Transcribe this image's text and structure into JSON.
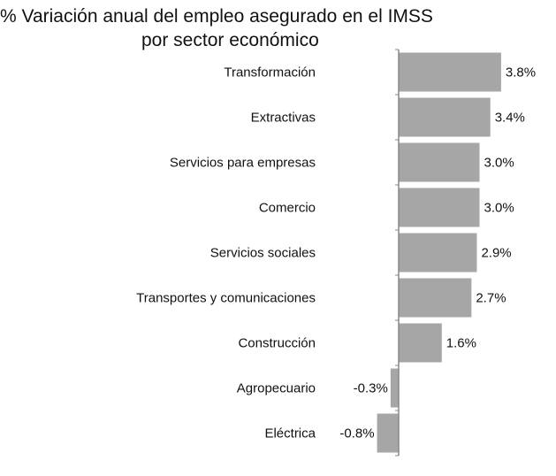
{
  "chart_data": {
    "type": "bar",
    "orientation": "horizontal",
    "title": "% Variación anual del empleo asegurado en el IMSS",
    "subtitle": "por sector económico",
    "categories": [
      "Transformación",
      "Extractivas",
      "Servicios para empresas",
      "Comercio",
      "Servicios sociales",
      "Transportes y comunicaciones",
      "Construcción",
      "Agropecuario",
      "Eléctrica"
    ],
    "values": [
      3.8,
      3.4,
      3.0,
      3.0,
      2.9,
      2.7,
      1.6,
      -0.3,
      -0.8
    ],
    "data_labels": [
      "3.8%",
      "3.4%",
      "3.0%",
      "3.0%",
      "2.9%",
      "2.7%",
      "1.6%",
      "-0.3%",
      "-0.8%"
    ],
    "xlim": [
      -0.8,
      3.8
    ],
    "grid": false,
    "legend": "none",
    "bar_color": "#a6a6a6",
    "axis_color": "#888888"
  }
}
